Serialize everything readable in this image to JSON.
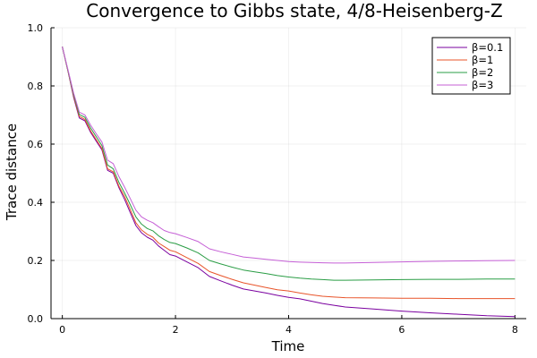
{
  "chart_data": {
    "type": "line",
    "title": "Convergence to Gibbs state, 4/8-Heisenberg-Z",
    "xlabel": "Time",
    "ylabel": "Trace distance",
    "xlim": [
      -0.2,
      8.2
    ],
    "ylim": [
      0,
      1.0
    ],
    "xticks": [
      0,
      2,
      4,
      6,
      8
    ],
    "yticks": [
      0.0,
      0.2,
      0.4,
      0.6,
      0.8,
      1.0
    ],
    "xtick_labels": [
      "0",
      "2",
      "4",
      "6",
      "8"
    ],
    "ytick_labels": [
      "0.0",
      "0.2",
      "0.4",
      "0.6",
      "0.8",
      "1.0"
    ],
    "grid": true,
    "legend_position": "top-right",
    "x": [
      0,
      0.1,
      0.2,
      0.3,
      0.4,
      0.5,
      0.6,
      0.7,
      0.8,
      0.9,
      1.0,
      1.1,
      1.2,
      1.3,
      1.4,
      1.5,
      1.6,
      1.7,
      1.8,
      1.9,
      2.0,
      2.2,
      2.4,
      2.6,
      2.8,
      3.0,
      3.2,
      3.4,
      3.6,
      3.8,
      4.0,
      4.2,
      4.4,
      4.6,
      4.8,
      5.0,
      5.5,
      6.0,
      6.5,
      7.0,
      7.5,
      8.0
    ],
    "series": [
      {
        "name": "β=0.1",
        "color": "#7a009f",
        "values": [
          0.935,
          0.85,
          0.76,
          0.69,
          0.68,
          0.64,
          0.61,
          0.58,
          0.51,
          0.5,
          0.45,
          0.41,
          0.365,
          0.32,
          0.295,
          0.28,
          0.27,
          0.25,
          0.235,
          0.22,
          0.215,
          0.195,
          0.175,
          0.145,
          0.13,
          0.115,
          0.102,
          0.095,
          0.088,
          0.08,
          0.073,
          0.068,
          0.06,
          0.052,
          0.046,
          0.04,
          0.033,
          0.026,
          0.02,
          0.015,
          0.01,
          0.007
        ]
      },
      {
        "name": "β=1",
        "color": "#e8542a",
        "values": [
          0.935,
          0.85,
          0.765,
          0.695,
          0.685,
          0.645,
          0.615,
          0.585,
          0.515,
          0.505,
          0.455,
          0.42,
          0.375,
          0.33,
          0.305,
          0.29,
          0.28,
          0.26,
          0.248,
          0.235,
          0.23,
          0.21,
          0.19,
          0.162,
          0.148,
          0.135,
          0.123,
          0.115,
          0.107,
          0.099,
          0.095,
          0.088,
          0.082,
          0.077,
          0.074,
          0.072,
          0.071,
          0.07,
          0.07,
          0.069,
          0.069,
          0.069
        ]
      },
      {
        "name": "β=2",
        "color": "#2a9d45",
        "values": [
          0.935,
          0.852,
          0.77,
          0.702,
          0.692,
          0.655,
          0.625,
          0.595,
          0.528,
          0.515,
          0.468,
          0.432,
          0.392,
          0.35,
          0.325,
          0.31,
          0.302,
          0.285,
          0.272,
          0.262,
          0.258,
          0.243,
          0.226,
          0.2,
          0.188,
          0.177,
          0.167,
          0.161,
          0.155,
          0.148,
          0.143,
          0.139,
          0.136,
          0.134,
          0.132,
          0.132,
          0.133,
          0.134,
          0.135,
          0.135,
          0.136,
          0.136
        ]
      },
      {
        "name": "β=3",
        "color": "#c55fd6",
        "values": [
          0.935,
          0.855,
          0.775,
          0.71,
          0.7,
          0.665,
          0.635,
          0.607,
          0.545,
          0.533,
          0.488,
          0.452,
          0.413,
          0.373,
          0.35,
          0.338,
          0.33,
          0.316,
          0.303,
          0.296,
          0.292,
          0.279,
          0.265,
          0.24,
          0.23,
          0.221,
          0.212,
          0.208,
          0.204,
          0.2,
          0.196,
          0.194,
          0.193,
          0.192,
          0.191,
          0.191,
          0.193,
          0.195,
          0.197,
          0.198,
          0.199,
          0.2
        ]
      }
    ]
  }
}
